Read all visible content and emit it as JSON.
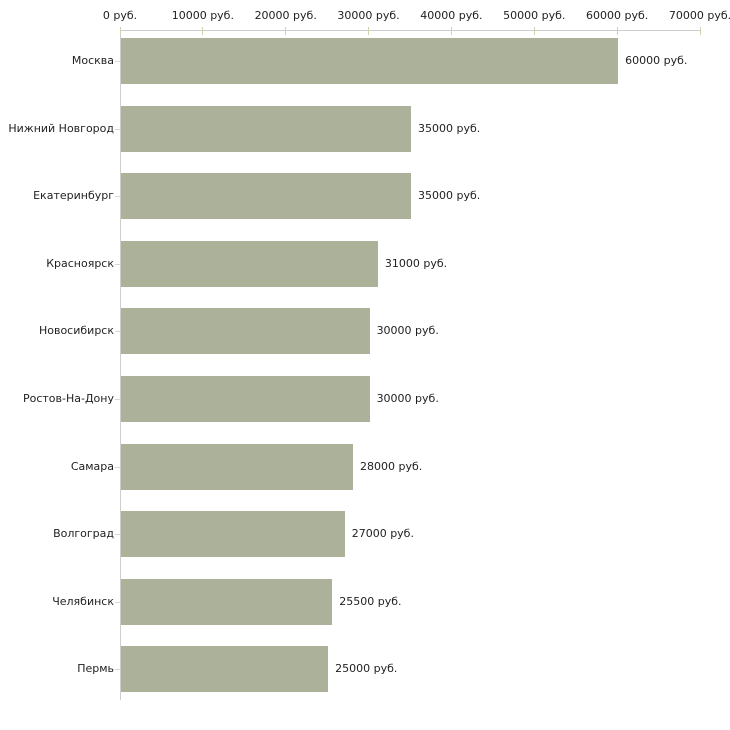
{
  "chart_data": {
    "type": "bar",
    "orientation": "horizontal",
    "title": "",
    "xlabel": "",
    "ylabel": "",
    "unit": "руб.",
    "categories": [
      "Москва",
      "Нижний Новгород",
      "Екатеринбург",
      "Красноярск",
      "Новосибирск",
      "Ростов-На-Дону",
      "Самара",
      "Волгоград",
      "Челябинск",
      "Пермь"
    ],
    "values": [
      60000,
      35000,
      35000,
      31000,
      30000,
      30000,
      28000,
      27000,
      25500,
      25000
    ],
    "value_labels": [
      "60000 руб.",
      "35000 руб.",
      "35000 руб.",
      "31000 руб.",
      "30000 руб.",
      "30000 руб.",
      "28000 руб.",
      "27000 руб.",
      "25500 руб.",
      "25000 руб."
    ],
    "x_ticks": [
      0,
      10000,
      20000,
      30000,
      40000,
      50000,
      60000,
      70000
    ],
    "x_tick_labels": [
      "0 руб.",
      "10000 руб.",
      "20000 руб.",
      "30000 руб.",
      "40000 руб.",
      "50000 руб.",
      "60000 руб.",
      "70000 руб."
    ],
    "xlim": [
      0,
      70000
    ],
    "grid": false,
    "legend": false,
    "colors": {
      "bar": "#acb29a",
      "axis_line": "#cdcdcd",
      "axis_tick": "#d2d2ae",
      "category_tick": "#d8d8c6",
      "text": "#1f1f1f",
      "background": "#ffffff"
    }
  }
}
